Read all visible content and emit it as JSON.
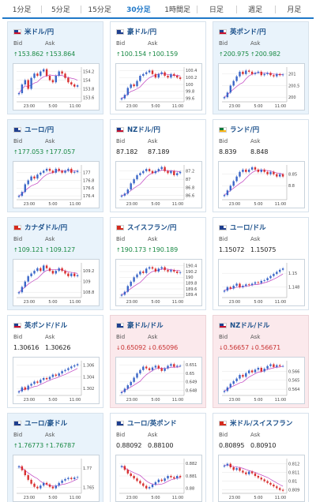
{
  "tabs": [
    {
      "label": "1分足",
      "active": false
    },
    {
      "label": "5分足",
      "active": false
    },
    {
      "label": "15分足",
      "active": false
    },
    {
      "label": "30分足",
      "active": true
    },
    {
      "label": "1時間足",
      "active": false
    },
    {
      "label": "日足",
      "active": false
    },
    {
      "label": "週足",
      "active": false
    },
    {
      "label": "月足",
      "active": false
    }
  ],
  "labels": {
    "bid": "Bid",
    "ask": "Ask"
  },
  "colors": {
    "up": "#1a8a45",
    "down": "#c83232",
    "ma": "#c040c0",
    "bull": "#3a66c8",
    "bear": "#d83030"
  },
  "cards": [
    {
      "name": "usd-jpy",
      "title": "米ドル/円",
      "flag": "us",
      "bg": "blue",
      "bid": "153.862",
      "ask": "153.864",
      "dir": "up",
      "x_ticks": [
        "23:00",
        "5:00",
        "11:00"
      ],
      "y_ticks": [
        "154.2",
        "154",
        "153.8",
        "153.6"
      ],
      "y_range": [
        153.5,
        154.3
      ],
      "price": [
        153.7,
        153.9,
        154.0,
        153.8,
        154.05,
        154.15,
        154.1,
        154.2,
        154.25,
        154.1,
        154.0,
        153.95,
        154.1,
        154.2,
        154.15,
        154.05,
        153.95,
        153.9,
        153.85,
        153.88
      ]
    },
    {
      "name": "aud-jpy",
      "title": "豪ドル/円",
      "flag": "au",
      "bg": "white",
      "bid": "100.154",
      "ask": "100.159",
      "dir": "up",
      "x_ticks": [
        "23:00",
        "5:00",
        "11:00"
      ],
      "y_ticks": [
        "100.4",
        "100.2",
        "100",
        "99.8",
        "99.6"
      ],
      "y_range": [
        99.5,
        100.5
      ],
      "price": [
        99.6,
        99.7,
        99.9,
        100.0,
        99.95,
        100.1,
        100.25,
        100.3,
        100.35,
        100.4,
        100.3,
        100.2,
        100.3,
        100.35,
        100.25,
        100.2,
        100.3,
        100.25,
        100.2,
        100.16
      ]
    },
    {
      "name": "gbp-jpy",
      "title": "英ポンド/円",
      "flag": "gb",
      "bg": "blue",
      "bid": "200.975",
      "ask": "200.982",
      "dir": "up",
      "x_ticks": [
        "23:00",
        "5:00",
        "11:00"
      ],
      "y_ticks": [
        "201",
        "200.5",
        "200"
      ],
      "y_range": [
        199.8,
        201.3
      ],
      "price": [
        200.0,
        200.2,
        200.5,
        200.7,
        200.9,
        201.1,
        201.0,
        201.15,
        201.1,
        201.0,
        201.05,
        201.1,
        200.95,
        201.0,
        201.05,
        200.95,
        200.9,
        201.0,
        200.95,
        200.98
      ]
    },
    {
      "name": "eur-jpy",
      "title": "ユーロ/円",
      "flag": "eu",
      "bg": "blue",
      "bid": "177.053",
      "ask": "177.057",
      "dir": "up",
      "x_ticks": [
        "23:00",
        "5:00",
        "11:00"
      ],
      "y_ticks": [
        "177",
        "176.8",
        "176.6",
        "176.4"
      ],
      "y_range": [
        176.3,
        177.2
      ],
      "price": [
        176.4,
        176.5,
        176.7,
        176.8,
        176.9,
        176.85,
        176.95,
        177.0,
        177.05,
        177.1,
        177.05,
        177.0,
        177.1,
        177.05,
        177.0,
        177.05,
        177.1,
        177.0,
        177.02,
        177.05
      ]
    },
    {
      "name": "nzd-jpy",
      "title": "NZドル/円",
      "flag": "nz",
      "bg": "white",
      "bid": "87.182",
      "ask": "87.189",
      "dir": "none",
      "x_ticks": [
        "23:00",
        "5:00",
        "11:00"
      ],
      "y_ticks": [
        "87.2",
        "87",
        "86.8",
        "86.6"
      ],
      "y_range": [
        86.5,
        87.35
      ],
      "price": [
        86.6,
        86.65,
        86.75,
        86.9,
        87.0,
        87.1,
        87.15,
        87.2,
        87.25,
        87.2,
        87.15,
        87.2,
        87.25,
        87.3,
        87.2,
        87.15,
        87.2,
        87.1,
        87.15,
        87.18
      ]
    },
    {
      "name": "zar-jpy",
      "title": "ランド/円",
      "flag": "za",
      "bg": "white",
      "bid": "8.839",
      "ask": "8.848",
      "dir": "none",
      "x_ticks": [
        "23:00",
        "5:00",
        "11:00"
      ],
      "y_ticks": [
        "8.85",
        "8.8"
      ],
      "y_range": [
        8.74,
        8.89
      ],
      "price": [
        8.76,
        8.78,
        8.8,
        8.82,
        8.84,
        8.86,
        8.87,
        8.86,
        8.87,
        8.88,
        8.87,
        8.86,
        8.87,
        8.86,
        8.85,
        8.86,
        8.85,
        8.84,
        8.85,
        8.84
      ]
    },
    {
      "name": "cad-jpy",
      "title": "カナダドル/円",
      "flag": "ca",
      "bg": "blue",
      "bid": "109.121",
      "ask": "109.127",
      "dir": "up",
      "x_ticks": [
        "23:00",
        "5:00",
        "11:00"
      ],
      "y_ticks": [
        "109.2",
        "109",
        "108.8"
      ],
      "y_range": [
        108.7,
        109.35
      ],
      "price": [
        108.8,
        108.9,
        109.0,
        109.1,
        109.15,
        109.2,
        109.25,
        109.2,
        109.3,
        109.25,
        109.2,
        109.15,
        109.2,
        109.25,
        109.2,
        109.15,
        109.1,
        109.15,
        109.1,
        109.12
      ]
    },
    {
      "name": "chf-jpy",
      "title": "スイスフラン/円",
      "flag": "ch",
      "bg": "white",
      "bid": "190.173",
      "ask": "190.189",
      "dir": "up",
      "x_ticks": [
        "23:00",
        "5:00",
        "11:00"
      ],
      "y_ticks": [
        "190.4",
        "190.2",
        "190",
        "189.8",
        "189.6",
        "189.4"
      ],
      "y_range": [
        189.3,
        190.5
      ],
      "price": [
        189.4,
        189.5,
        189.7,
        189.85,
        190.0,
        190.1,
        190.2,
        190.15,
        190.3,
        190.35,
        190.3,
        190.2,
        190.3,
        190.35,
        190.25,
        190.2,
        190.25,
        190.2,
        190.15,
        190.17
      ]
    },
    {
      "name": "eur-usd",
      "title": "ユーロ/ドル",
      "flag": "eu",
      "bg": "white",
      "bid": "1.15072",
      "ask": "1.15075",
      "dir": "none",
      "x_ticks": [
        "23:00",
        "5:00",
        "11:00"
      ],
      "y_ticks": [
        "1.15",
        "1.148"
      ],
      "y_range": [
        1.1465,
        1.1515
      ],
      "price": [
        1.1475,
        1.148,
        1.1478,
        1.1482,
        1.1485,
        1.148,
        1.1482,
        1.1484,
        1.1483,
        1.1485,
        1.1487,
        1.1486,
        1.1489,
        1.149,
        1.1493,
        1.1496,
        1.1499,
        1.1502,
        1.1505,
        1.1507
      ]
    },
    {
      "name": "gbp-usd",
      "title": "英ポンド/ドル",
      "flag": "gb",
      "bg": "white",
      "bid": "1.30616",
      "ask": "1.30626",
      "dir": "none",
      "x_ticks": [
        "23:00",
        "5:00",
        "11:00"
      ],
      "y_ticks": [
        "1.306",
        "1.304",
        "1.302"
      ],
      "y_range": [
        1.3008,
        1.3068
      ],
      "price": [
        1.3015,
        1.3022,
        1.3018,
        1.3025,
        1.3028,
        1.3032,
        1.303,
        1.3035,
        1.3038,
        1.3036,
        1.304,
        1.3044,
        1.3042,
        1.3046,
        1.305,
        1.3052,
        1.3055,
        1.3058,
        1.306,
        1.3062
      ]
    },
    {
      "name": "aud-usd",
      "title": "豪ドル/ドル",
      "flag": "au",
      "bg": "pink",
      "bid": "0.65092",
      "ask": "0.65096",
      "dir": "down",
      "x_ticks": [
        "23:00",
        "5:00",
        "11:00"
      ],
      "y_ticks": [
        "0.651",
        "0.65",
        "0.649",
        "0.648"
      ],
      "y_range": [
        0.6474,
        0.6515
      ],
      "price": [
        0.6478,
        0.6482,
        0.6486,
        0.649,
        0.6495,
        0.65,
        0.6504,
        0.6508,
        0.6506,
        0.6504,
        0.6507,
        0.6509,
        0.6506,
        0.6503,
        0.6506,
        0.6509,
        0.6511,
        0.6508,
        0.6509,
        0.6509
      ]
    },
    {
      "name": "nzd-usd",
      "title": "NZドル/ドル",
      "flag": "nz",
      "bg": "pink",
      "bid": "0.56657",
      "ask": "0.56671",
      "dir": "down",
      "x_ticks": [
        "23:00",
        "5:00",
        "11:00"
      ],
      "y_ticks": [
        "0.566",
        "0.565",
        "0.564"
      ],
      "y_range": [
        0.5633,
        0.5672
      ],
      "price": [
        0.5638,
        0.5642,
        0.5646,
        0.5649,
        0.5652,
        0.5656,
        0.5654,
        0.5658,
        0.5661,
        0.5659,
        0.5662,
        0.5664,
        0.566,
        0.5663,
        0.5666,
        0.5668,
        0.5665,
        0.5667,
        0.5666,
        0.5666
      ]
    },
    {
      "name": "eur-aud",
      "title": "ユーロ/豪ドル",
      "flag": "eu",
      "bg": "blue",
      "bid": "1.76773",
      "ask": "1.76787",
      "dir": "up",
      "x_ticks": [
        "23:00",
        "5:00",
        "11:00"
      ],
      "y_ticks": [
        "1.77",
        "1.765"
      ],
      "y_range": [
        1.7635,
        1.7725
      ],
      "price": [
        1.7705,
        1.7695,
        1.7682,
        1.767,
        1.766,
        1.7652,
        1.7648,
        1.7655,
        1.7662,
        1.7658,
        1.7652,
        1.7648,
        1.7655,
        1.7662,
        1.7668,
        1.7672,
        1.7675,
        1.7672,
        1.7676,
        1.7677
      ]
    },
    {
      "name": "eur-gbp",
      "title": "ユーロ/英ポンド",
      "flag": "eu",
      "bg": "white",
      "bid": "0.88092",
      "ask": "0.88100",
      "dir": "none",
      "x_ticks": [
        "23:00",
        "5:00",
        "11:00"
      ],
      "y_ticks": [
        "0.882",
        "0.881",
        "0.88"
      ],
      "y_range": [
        0.8796,
        0.8824
      ],
      "price": [
        0.8818,
        0.8815,
        0.8812,
        0.881,
        0.8808,
        0.8806,
        0.8804,
        0.8802,
        0.88,
        0.8801,
        0.8803,
        0.8805,
        0.8807,
        0.8806,
        0.8808,
        0.881,
        0.8809,
        0.8808,
        0.881,
        0.8809
      ]
    },
    {
      "name": "usd-chf",
      "title": "米ドル/スイスフラン",
      "flag": "ch",
      "bg": "white",
      "bid": "0.80895",
      "ask": "0.80910",
      "dir": "none",
      "x_ticks": [
        "23:00",
        "5:00",
        "11:00"
      ],
      "y_ticks": [
        "0.812",
        "0.811",
        "0.81",
        "0.809"
      ],
      "y_range": [
        0.8086,
        0.8126
      ],
      "price": [
        0.8118,
        0.812,
        0.8116,
        0.8113,
        0.8115,
        0.8112,
        0.811,
        0.8108,
        0.8111,
        0.8109,
        0.8106,
        0.8104,
        0.8102,
        0.81,
        0.8098,
        0.8096,
        0.8094,
        0.8092,
        0.809,
        0.8089
      ]
    }
  ]
}
